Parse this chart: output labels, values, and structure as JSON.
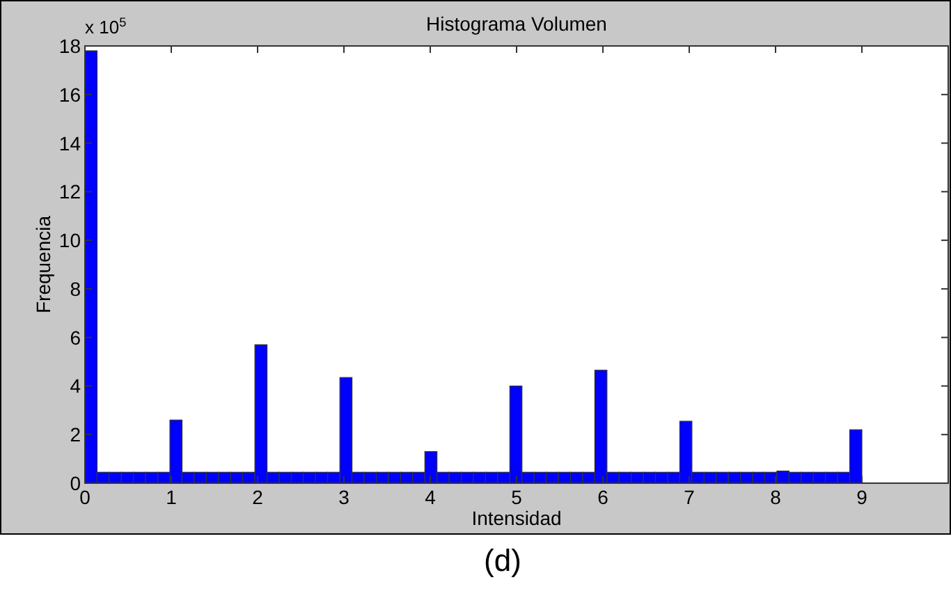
{
  "chart_data": {
    "type": "histogram",
    "title": "Histograma Volumen",
    "xlabel": "Intensidad",
    "ylabel": "Frequencia",
    "annotations": [
      "x 10$^{5}$",
      "(d)"
    ],
    "bins": [
      0,
      0.140625,
      0.28125,
      0.421875,
      0.5625,
      0.703125,
      0.84375,
      0.984375,
      1.125,
      1.265625,
      1.40625,
      1.546875,
      1.6875,
      1.828125,
      1.96875,
      2.109375,
      2.25,
      2.390625,
      2.53125,
      2.671875,
      2.8125,
      2.953125,
      3.09375,
      3.234375,
      3.375,
      3.515625,
      3.65625,
      3.796875,
      3.9375,
      4.078125,
      4.21875,
      4.359375,
      4.5,
      4.640625,
      4.78125,
      4.921875,
      5.0625,
      5.203125,
      5.34375,
      5.484375,
      5.625,
      5.765625,
      5.90625,
      6.046875,
      6.1875,
      6.328125,
      6.46875,
      6.609375,
      6.75,
      6.890625,
      7.03125,
      7.171875,
      7.3125,
      7.453125,
      7.59375,
      7.734375,
      7.875,
      8.015625,
      8.15625,
      8.296875,
      8.4375,
      8.578125,
      8.71875,
      8.859375,
      9
    ],
    "values": [
      17.8,
      0.45,
      0.45,
      0.45,
      0.45,
      0.45,
      0.45,
      2.6,
      0.45,
      0.45,
      0.45,
      0.45,
      0.45,
      0.45,
      5.7,
      0.45,
      0.45,
      0.45,
      0.45,
      0.45,
      0.45,
      4.35,
      0.45,
      0.45,
      0.45,
      0.45,
      0.45,
      0.45,
      1.3,
      0.45,
      0.45,
      0.45,
      0.45,
      0.45,
      0.45,
      4.0,
      0.45,
      0.45,
      0.45,
      0.45,
      0.45,
      0.45,
      4.65,
      0.45,
      0.45,
      0.45,
      0.45,
      0.45,
      0.45,
      2.55,
      0.45,
      0.45,
      0.45,
      0.45,
      0.45,
      0.45,
      0.45,
      0.5,
      0.45,
      0.45,
      0.45,
      0.45,
      0.45,
      2.2
    ],
    "color": "#0000ff",
    "xlim": [
      0,
      10
    ],
    "xticks": [
      0,
      1,
      2,
      3,
      4,
      5,
      6,
      7,
      8,
      9
    ],
    "ylim": [
      0,
      18
    ],
    "yticks": [
      0,
      2,
      4,
      6,
      8,
      10,
      12,
      14,
      16,
      18
    ]
  }
}
